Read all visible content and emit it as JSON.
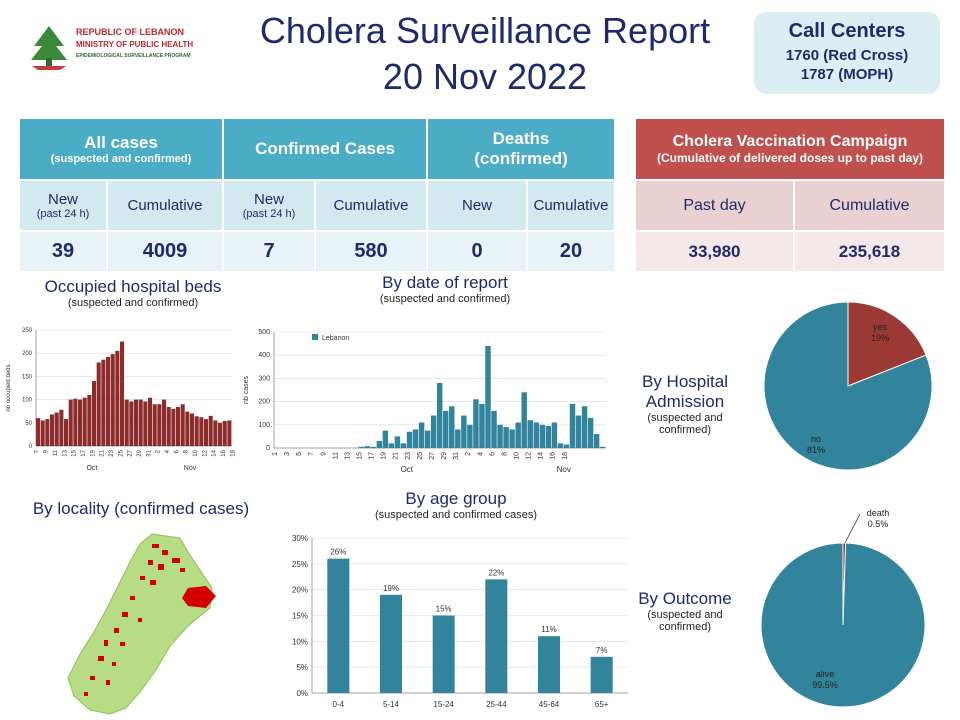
{
  "header": {
    "org_line1": "REPUBLIC OF LEBANON",
    "org_line2": "MINISTRY OF PUBLIC HEALTH",
    "org_line3": "EPIDEMIOLOGICAL SURVEILLANCE PROGRAM",
    "title_line1": "Cholera Surveillance Report",
    "title_line2": "20 Nov 2022",
    "call_centers_title": "Call Centers",
    "call_centers_line1": "1760 (Red Cross)",
    "call_centers_line2": "1787 (MOPH)"
  },
  "cases_table": {
    "all_cases": "All cases",
    "all_cases_sub": "(suspected and confirmed)",
    "confirmed": "Confirmed  Cases",
    "deaths": "Deaths",
    "deaths_sub": "(confirmed)",
    "new": "New",
    "past24": "(past 24 h)",
    "cumulative": "Cumulative",
    "all_new": "39",
    "all_cum": "4009",
    "conf_new": "7",
    "conf_cum": "580",
    "death_new": "0",
    "death_cum": "20"
  },
  "vaccination": {
    "title": "Cholera Vaccination Campaign",
    "subtitle": "(Cumulative of delivered doses up to past day)",
    "past_day": "Past day",
    "cumulative": "Cumulative",
    "past_day_value": "33,980",
    "cumulative_value": "235,618"
  },
  "sections": {
    "beds_title": "Occupied hospital beds",
    "beds_sub": "(suspected and confirmed)",
    "report_title": "By date of report",
    "report_sub": "(suspected and confirmed)",
    "hosp_title_1": "By Hospital",
    "hosp_title_2": "Admission",
    "hosp_sub_1": "(suspected and",
    "hosp_sub_2": "confirmed)",
    "locality_title": "By locality (confirmed cases)",
    "age_title": "By age group",
    "age_sub": "(suspected and confirmed cases)",
    "outcome_title": "By Outcome",
    "outcome_sub_1": "(suspected and",
    "outcome_sub_2": "confirmed)"
  },
  "colors": {
    "bed_bar": "#8b2b2b",
    "teal": "#31849b",
    "red": "#9b3a35",
    "map_green": "#b6dc84",
    "map_red": "#d40000"
  },
  "chart_data": [
    {
      "id": "beds",
      "type": "bar",
      "ylabel": "nb occupied beds",
      "ylim": [
        0,
        250
      ],
      "yticks": [
        0,
        50,
        100,
        150,
        200,
        250
      ],
      "tick_labels": [
        "7",
        "9",
        "11",
        "13",
        "15",
        "17",
        "19",
        "21",
        "23",
        "25",
        "27",
        "29",
        "31",
        "2",
        "4",
        "6",
        "8",
        "10",
        "12",
        "14",
        "16",
        "18"
      ],
      "month_labels": [
        "Oct",
        "Nov"
      ],
      "values": [
        60,
        55,
        58,
        68,
        72,
        78,
        58,
        100,
        102,
        100,
        104,
        110,
        140,
        180,
        186,
        192,
        198,
        205,
        225,
        100,
        96,
        100,
        100,
        96,
        104,
        90,
        90,
        100,
        84,
        80,
        84,
        90,
        74,
        70,
        64,
        62,
        58,
        65,
        55,
        50,
        54,
        55
      ]
    },
    {
      "id": "report",
      "type": "bar",
      "ylabel": "nb cases",
      "legend": "Lebanon",
      "ylim": [
        0,
        500
      ],
      "yticks": [
        0,
        100,
        200,
        300,
        400,
        500
      ],
      "tick_labels": [
        "1",
        "3",
        "5",
        "7",
        "9",
        "11",
        "13",
        "15",
        "17",
        "19",
        "21",
        "23",
        "25",
        "27",
        "29",
        "31",
        "2",
        "4",
        "6",
        "8",
        "10",
        "12",
        "14",
        "16",
        "18"
      ],
      "month_labels": [
        "Oct",
        "Nov"
      ],
      "values": [
        0,
        0,
        0,
        0,
        0,
        0,
        0,
        0,
        0,
        0,
        0,
        0,
        0,
        0,
        5,
        8,
        5,
        30,
        75,
        20,
        50,
        20,
        70,
        80,
        110,
        75,
        140,
        280,
        160,
        180,
        80,
        140,
        100,
        210,
        190,
        440,
        160,
        100,
        90,
        80,
        110,
        240,
        120,
        110,
        100,
        95,
        110,
        20,
        15,
        190,
        140,
        180,
        130,
        60,
        5
      ]
    },
    {
      "id": "hospital_admission",
      "type": "pie",
      "labels": [
        "yes",
        "no"
      ],
      "values": [
        19,
        81
      ],
      "value_labels": [
        "19%",
        "81%"
      ]
    },
    {
      "id": "age_group",
      "type": "bar",
      "categories": [
        "0-4",
        "5-14",
        "15-24",
        "25-44",
        "45-64",
        "65+"
      ],
      "values": [
        26,
        19,
        15,
        22,
        11,
        7
      ],
      "value_labels": [
        "26%",
        "19%",
        "15%",
        "22%",
        "11%",
        "7%"
      ],
      "ylim": [
        0,
        30
      ],
      "yticks": [
        "0%",
        "5%",
        "10%",
        "15%",
        "20%",
        "25%",
        "30%"
      ]
    },
    {
      "id": "outcome",
      "type": "pie",
      "labels": [
        "death",
        "alive"
      ],
      "values": [
        0.5,
        99.5
      ],
      "value_labels": [
        "0.5%",
        "99.5%"
      ]
    }
  ]
}
